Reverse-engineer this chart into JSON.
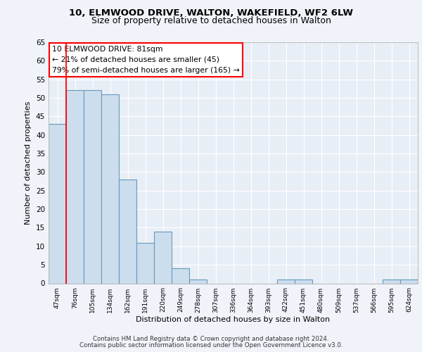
{
  "title1": "10, ELMWOOD DRIVE, WALTON, WAKEFIELD, WF2 6LW",
  "title2": "Size of property relative to detached houses in Walton",
  "xlabel": "Distribution of detached houses by size in Walton",
  "ylabel": "Number of detached properties",
  "bin_labels": [
    "47sqm",
    "76sqm",
    "105sqm",
    "134sqm",
    "162sqm",
    "191sqm",
    "220sqm",
    "249sqm",
    "278sqm",
    "307sqm",
    "336sqm",
    "364sqm",
    "393sqm",
    "422sqm",
    "451sqm",
    "480sqm",
    "509sqm",
    "537sqm",
    "566sqm",
    "595sqm",
    "624sqm"
  ],
  "bar_values": [
    43,
    52,
    52,
    51,
    28,
    11,
    14,
    4,
    1,
    0,
    0,
    0,
    0,
    1,
    1,
    0,
    0,
    0,
    0,
    1,
    1
  ],
  "bar_color": "#ccdded",
  "bar_edge_color": "#6699bb",
  "red_line_x": 0.5,
  "annotation_title": "10 ELMWOOD DRIVE: 81sqm",
  "annotation_line1": "← 21% of detached houses are smaller (45)",
  "annotation_line2": "79% of semi-detached houses are larger (165) →",
  "footer1": "Contains HM Land Registry data © Crown copyright and database right 2024.",
  "footer2": "Contains public sector information licensed under the Open Government Licence v3.0.",
  "ylim": [
    0,
    65
  ],
  "yticks": [
    0,
    5,
    10,
    15,
    20,
    25,
    30,
    35,
    40,
    45,
    50,
    55,
    60,
    65
  ],
  "bg_color": "#f0f4fa",
  "plot_bg_color": "#e8eef6",
  "grid_color": "#ffffff",
  "title1_fontsize": 9.5,
  "title2_fontsize": 9.0
}
